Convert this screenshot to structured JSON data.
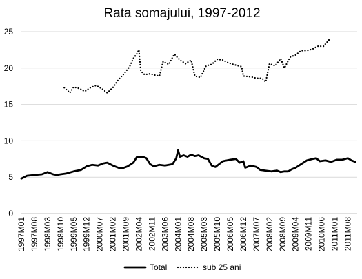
{
  "chart_data": {
    "type": "line",
    "title": "Rata somajului, 1997-2012",
    "xlabel": "",
    "ylabel": "",
    "ylim": [
      0,
      25
    ],
    "y_ticks": [
      0,
      5,
      10,
      15,
      20,
      25
    ],
    "grid": "horizontal",
    "legend_position": "bottom",
    "x_tick_labels": [
      "1997M01",
      "1997M08",
      "1998M03",
      "1998M10",
      "1999M05",
      "1999M12",
      "2000M07",
      "2001M02",
      "2001M09",
      "2002M04",
      "2002M11",
      "2003M06",
      "2004M01",
      "2004M08",
      "2005M03",
      "2005M10",
      "2006M05",
      "2006M12",
      "2007M07",
      "2008M02",
      "2008M09",
      "2009M04",
      "2009M11",
      "2010M06",
      "2011M01",
      "2011M08"
    ],
    "x_start": "1997M01",
    "x_end": "2012M01",
    "series": [
      {
        "name": "Total",
        "style": "solid",
        "color": "#000000",
        "points": [
          [
            "1997M01",
            4.8
          ],
          [
            "1997M04",
            5.2
          ],
          [
            "1997M08",
            5.3
          ],
          [
            "1997M12",
            5.4
          ],
          [
            "1998M03",
            5.7
          ],
          [
            "1998M06",
            5.4
          ],
          [
            "1998M08",
            5.3
          ],
          [
            "1998M10",
            5.4
          ],
          [
            "1999M01",
            5.5
          ],
          [
            "1999M05",
            5.8
          ],
          [
            "1999M09",
            6.0
          ],
          [
            "1999M12",
            6.5
          ],
          [
            "2000M03",
            6.7
          ],
          [
            "2000M06",
            6.6
          ],
          [
            "2000M09",
            6.9
          ],
          [
            "2000M11",
            7.0
          ],
          [
            "2001M02",
            6.6
          ],
          [
            "2001M05",
            6.3
          ],
          [
            "2001M07",
            6.2
          ],
          [
            "2001M10",
            6.5
          ],
          [
            "2002M01",
            7.0
          ],
          [
            "2002M03",
            7.8
          ],
          [
            "2002M06",
            7.8
          ],
          [
            "2002M08",
            7.6
          ],
          [
            "2002M10",
            6.8
          ],
          [
            "2002M12",
            6.5
          ],
          [
            "2003M03",
            6.7
          ],
          [
            "2003M06",
            6.6
          ],
          [
            "2003M10",
            6.8
          ],
          [
            "2003M12",
            7.6
          ],
          [
            "2004M01",
            8.7
          ],
          [
            "2004M02",
            7.8
          ],
          [
            "2004M04",
            8.0
          ],
          [
            "2004M06",
            7.8
          ],
          [
            "2004M08",
            8.1
          ],
          [
            "2004M10",
            7.9
          ],
          [
            "2004M12",
            8.0
          ],
          [
            "2005M03",
            7.6
          ],
          [
            "2005M05",
            7.5
          ],
          [
            "2005M07",
            6.6
          ],
          [
            "2005M09",
            6.4
          ],
          [
            "2005M11",
            6.8
          ],
          [
            "2006M01",
            7.2
          ],
          [
            "2006M05",
            7.4
          ],
          [
            "2006M08",
            7.5
          ],
          [
            "2006M10",
            7.0
          ],
          [
            "2006M12",
            7.2
          ],
          [
            "2007M01",
            6.3
          ],
          [
            "2007M04",
            6.6
          ],
          [
            "2007M07",
            6.4
          ],
          [
            "2007M09",
            6.0
          ],
          [
            "2007M12",
            5.9
          ],
          [
            "2008M03",
            5.8
          ],
          [
            "2008M06",
            5.9
          ],
          [
            "2008M08",
            5.7
          ],
          [
            "2008M10",
            5.8
          ],
          [
            "2008M12",
            5.8
          ],
          [
            "2009M02",
            6.1
          ],
          [
            "2009M04",
            6.3
          ],
          [
            "2009M07",
            6.8
          ],
          [
            "2009M10",
            7.3
          ],
          [
            "2010M01",
            7.5
          ],
          [
            "2010M03",
            7.6
          ],
          [
            "2010M05",
            7.2
          ],
          [
            "2010M08",
            7.3
          ],
          [
            "2010M11",
            7.1
          ],
          [
            "2011M02",
            7.4
          ],
          [
            "2011M05",
            7.4
          ],
          [
            "2011M08",
            7.6
          ],
          [
            "2011M10",
            7.3
          ],
          [
            "2011M12",
            7.1
          ]
        ]
      },
      {
        "name": "sub 25 ani",
        "style": "dotted",
        "color": "#000000",
        "points": [
          [
            "1998M12",
            17.3
          ],
          [
            "1999M03",
            16.6
          ],
          [
            "1999M05",
            17.4
          ],
          [
            "1999M08",
            17.2
          ],
          [
            "1999M11",
            16.8
          ],
          [
            "2000M02",
            17.3
          ],
          [
            "2000M05",
            17.6
          ],
          [
            "2000M08",
            17.2
          ],
          [
            "2000M11",
            16.6
          ],
          [
            "2001M02",
            17.3
          ],
          [
            "2001M05",
            18.4
          ],
          [
            "2001M08",
            19.2
          ],
          [
            "2001M11",
            20.2
          ],
          [
            "2002M01",
            21.3
          ],
          [
            "2002M03",
            22.0
          ],
          [
            "2002M04",
            22.5
          ],
          [
            "2002M05",
            19.6
          ],
          [
            "2002M07",
            19.1
          ],
          [
            "2002M10",
            19.2
          ],
          [
            "2003M01",
            19.0
          ],
          [
            "2003M03",
            18.9
          ],
          [
            "2003M05",
            20.9
          ],
          [
            "2003M08",
            20.5
          ],
          [
            "2003M11",
            21.9
          ],
          [
            "2004M02",
            21.1
          ],
          [
            "2004M05",
            20.6
          ],
          [
            "2004M08",
            21.1
          ],
          [
            "2004M10",
            18.9
          ],
          [
            "2005M01",
            18.7
          ],
          [
            "2005M04",
            20.3
          ],
          [
            "2005M07",
            20.5
          ],
          [
            "2005M10",
            21.2
          ],
          [
            "2006M01",
            21.1
          ],
          [
            "2006M04",
            20.7
          ],
          [
            "2006M08",
            20.4
          ],
          [
            "2006M11",
            20.2
          ],
          [
            "2006M12",
            18.9
          ],
          [
            "2007M04",
            18.8
          ],
          [
            "2007M07",
            18.6
          ],
          [
            "2007M10",
            18.6
          ],
          [
            "2007M12",
            18.1
          ],
          [
            "2008M02",
            20.6
          ],
          [
            "2008M05",
            20.3
          ],
          [
            "2008M08",
            21.3
          ],
          [
            "2008M10",
            20.0
          ],
          [
            "2009M01",
            21.5
          ],
          [
            "2009M04",
            21.8
          ],
          [
            "2009M07",
            22.4
          ],
          [
            "2009M10",
            22.4
          ],
          [
            "2010M01",
            22.6
          ],
          [
            "2010M04",
            23.0
          ],
          [
            "2010M07",
            23.0
          ],
          [
            "2010M10",
            23.9
          ]
        ]
      }
    ]
  }
}
